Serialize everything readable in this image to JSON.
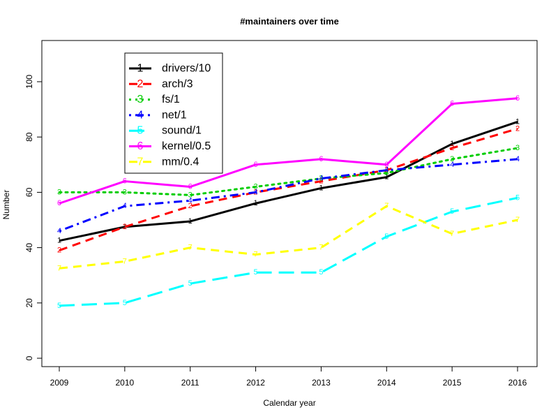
{
  "chart_data": {
    "type": "line",
    "title": "#maintainers over time",
    "xlabel": "Calendar year",
    "ylabel": "Number",
    "x": [
      2009,
      2010,
      2011,
      2012,
      2013,
      2014,
      2015,
      2016
    ],
    "xlim": [
      2009,
      2016
    ],
    "ylim": [
      0,
      110
    ],
    "y_ticks": [
      0,
      20,
      40,
      60,
      80,
      100
    ],
    "grid": false,
    "legend_position": "top-left",
    "series": [
      {
        "name": "drivers/10",
        "marker": "1",
        "color": "#000000",
        "dash": "solid",
        "values": [
          42.5,
          47.5,
          49.5,
          56,
          61.5,
          65.5,
          77.5,
          85.5
        ]
      },
      {
        "name": "arch/3",
        "marker": "2",
        "color": "#ff0000",
        "dash": "dashed",
        "values": [
          39,
          47.5,
          55,
          60,
          64,
          68,
          76,
          83
        ]
      },
      {
        "name": "fs/1",
        "marker": "3",
        "color": "#00cd00",
        "dash": "dotted",
        "values": [
          60,
          60,
          59,
          62,
          65,
          67,
          72,
          76
        ]
      },
      {
        "name": "net/1",
        "marker": "4",
        "color": "#0000ff",
        "dash": "dotdash",
        "values": [
          46,
          55,
          57,
          60,
          65,
          68,
          70,
          72
        ]
      },
      {
        "name": "sound/1",
        "marker": "5",
        "color": "#00ffff",
        "dash": "longdash",
        "values": [
          19,
          20,
          27,
          31,
          31,
          44,
          53,
          58
        ]
      },
      {
        "name": "kernel/0.5",
        "marker": "6",
        "color": "#ff00ff",
        "dash": "solid",
        "values": [
          56,
          64,
          62,
          70,
          72,
          70,
          92,
          94
        ]
      },
      {
        "name": "mm/0.4",
        "marker": "7",
        "color": "#ffff00",
        "dash": "dashed",
        "values": [
          32.5,
          35,
          40,
          37.5,
          40,
          55,
          45,
          50
        ]
      }
    ]
  }
}
